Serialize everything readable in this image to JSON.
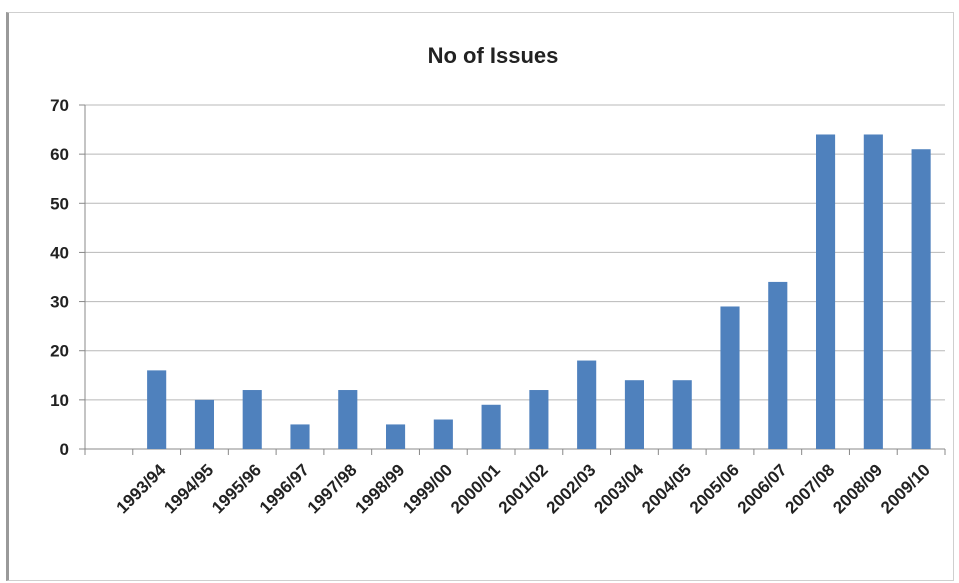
{
  "chart_data": {
    "type": "bar",
    "title": "No of Issues",
    "categories": [
      "1993/94",
      "1994/95",
      "1995/96",
      "1996/97",
      "1997/98",
      "1998/99",
      "1999/00",
      "2000/01",
      "2001/02",
      "2002/03",
      "2003/04",
      "2004/05",
      "2005/06",
      "2006/07",
      "2007/08",
      "2008/09",
      "2009/10"
    ],
    "values": [
      16,
      10,
      12,
      5,
      12,
      5,
      6,
      9,
      12,
      18,
      14,
      14,
      29,
      34,
      64,
      64,
      61
    ],
    "yticks": [
      "0",
      "10",
      "20",
      "30",
      "40",
      "50",
      "60",
      "70"
    ],
    "ylim": [
      0,
      70
    ],
    "grid": true,
    "bar_color": "#4f81bd",
    "xlabel": "",
    "ylabel": ""
  }
}
